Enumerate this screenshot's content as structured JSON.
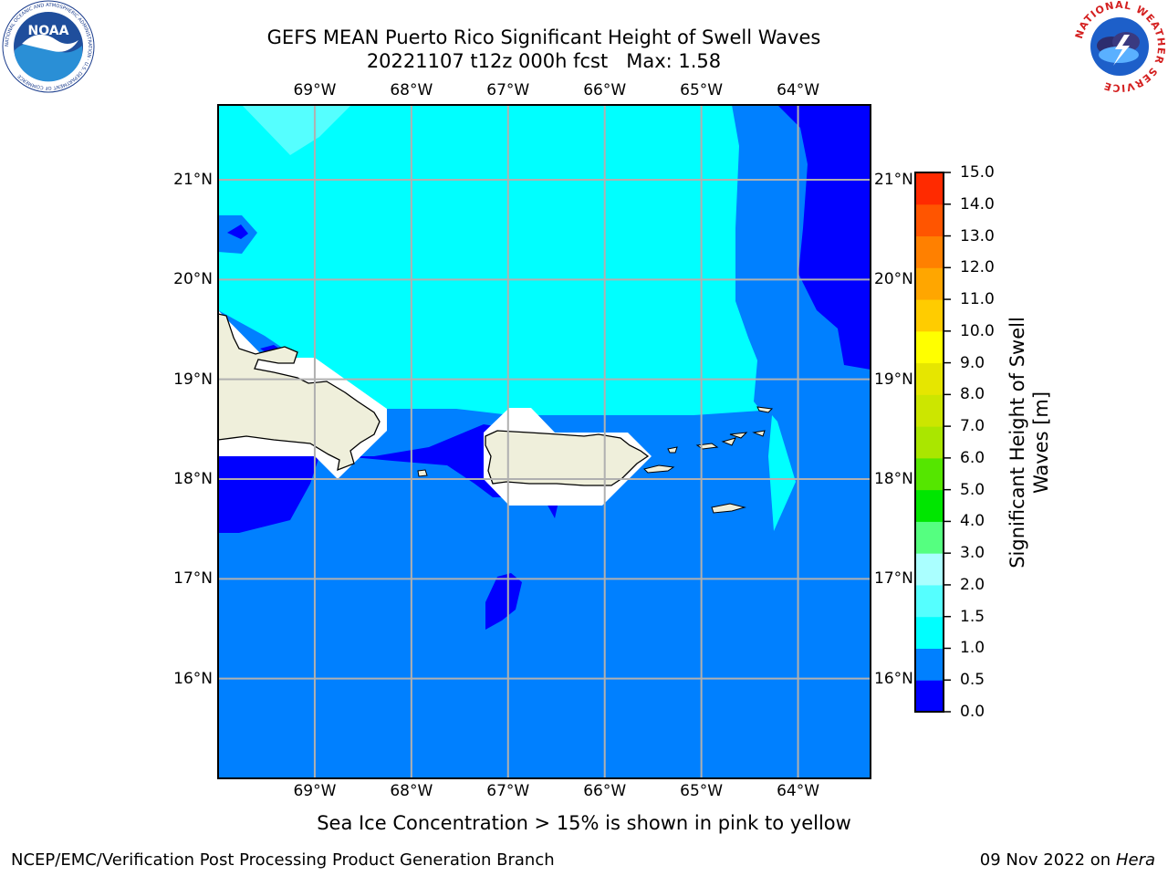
{
  "header": {
    "title_line1": "GEFS MEAN Puerto Rico Significant Height of Swell Waves",
    "title_line2": "20221107 t12z 000h fcst   Max: 1.58"
  },
  "logos": {
    "left_icon": "noaa-logo-icon",
    "left_text": "NOAA",
    "left_ring_text": "NATIONAL OCEANIC AND ATMOSPHERIC ADMINISTRATION · U.S. DEPARTMENT OF COMMERCE",
    "right_icon": "nws-logo-icon",
    "right_ring_text": "NATIONAL WEATHER SERVICE"
  },
  "map": {
    "lon_ticks": [
      "69°W",
      "68°W",
      "67°W",
      "66°W",
      "65°W",
      "64°W"
    ],
    "lon_values": [
      -69,
      -68,
      -67,
      -66,
      -65,
      -64
    ],
    "lat_ticks": [
      "21°N",
      "20°N",
      "19°N",
      "18°N",
      "17°N",
      "16°N"
    ],
    "lat_values": [
      21,
      20,
      19,
      18,
      17,
      16
    ],
    "extent": {
      "lon_min": -70.0,
      "lon_max": -63.25,
      "lat_min": 15.0,
      "lat_max": 21.75
    }
  },
  "colorbar": {
    "label_line1": "Significant Height of Swell",
    "label_line2": "Waves [m]",
    "ticks": [
      "15.0",
      "14.0",
      "13.0",
      "12.0",
      "11.0",
      "10.0",
      "9.0",
      "8.0",
      "7.0",
      "6.0",
      "5.0",
      "4.0",
      "3.0",
      "2.0",
      "1.5",
      "1.0",
      "0.5",
      "0.0"
    ],
    "levels": [
      0.0,
      0.5,
      1.0,
      1.5,
      2.0,
      3.0,
      4.0,
      5.0,
      6.0,
      7.0,
      8.0,
      9.0,
      10.0,
      11.0,
      12.0,
      13.0,
      14.0,
      15.0
    ],
    "colors": [
      "#0000ff",
      "#0080ff",
      "#00ffff",
      "#55ffff",
      "#aaffff",
      "#55ff80",
      "#00e600",
      "#55e600",
      "#aae600",
      "#cce600",
      "#e6e600",
      "#ffff00",
      "#ffcc00",
      "#ffa600",
      "#ff8000",
      "#ff5500",
      "#ff2a00"
    ]
  },
  "colors": {
    "range_0_0_5": "#0000ff",
    "range_0_5_1_0": "#0080ff",
    "range_1_0_1_5": "#00ffff",
    "range_1_5_2_0": "#55ffff",
    "land": "#efefdb",
    "grid": "#b0b0b0"
  },
  "note": "Sea Ice Concentration > 15% is shown in pink to yellow",
  "footer": {
    "left": "NCEP/EMC/Verification Post Processing Product Generation Branch",
    "right_date": "09 Nov 2022 on",
    "right_machine": "Hera"
  }
}
